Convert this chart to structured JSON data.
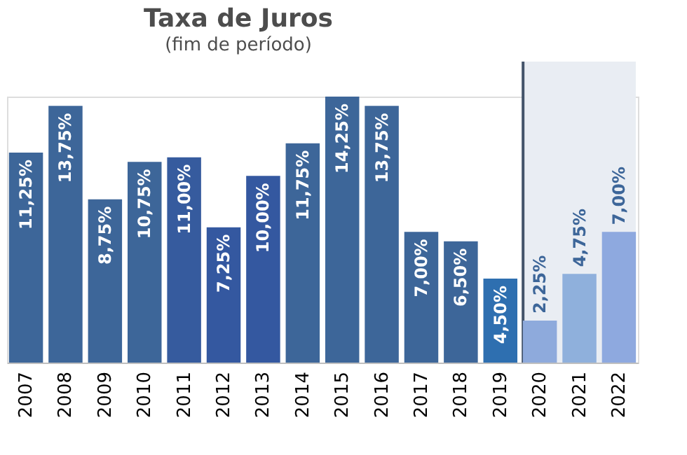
{
  "chart_data": {
    "type": "bar",
    "title": "Taxa de Juros",
    "subtitle": "(fim de período)",
    "categories": [
      "2007",
      "2008",
      "2009",
      "2010",
      "2011",
      "2012",
      "2013",
      "2014",
      "2015",
      "2016",
      "2017",
      "2018",
      "2019",
      "2020",
      "2021",
      "2022"
    ],
    "values": [
      11.25,
      13.75,
      8.75,
      10.75,
      11.0,
      7.25,
      10.0,
      11.75,
      14.25,
      13.75,
      7.0,
      6.5,
      4.5,
      2.25,
      4.75,
      7.0
    ],
    "colors": [
      "#3d6699",
      "#3d6699",
      "#3d6699",
      "#3d6699",
      "#365b9e",
      "#3458a0",
      "#3458a0",
      "#3d6699",
      "#3d6699",
      "#3d6699",
      "#3d6699",
      "#3d6699",
      "#2e6fb0",
      "#8eaadc",
      "#8fb0dc",
      "#8ea9df"
    ],
    "value_labels": [
      "11,25%",
      "13,75%",
      "8,75%",
      "10,75%",
      "11,00%",
      "7,25%",
      "10,00%",
      "11,75%",
      "14,25%",
      "13,75%",
      "7,00%",
      "6,50%",
      "4,50%",
      "2,25%",
      "4,75%",
      "7,00%"
    ],
    "bands": [
      {
        "axis": "x",
        "from": "2020",
        "to": "2022",
        "color": "#e9edf3"
      }
    ]
  }
}
